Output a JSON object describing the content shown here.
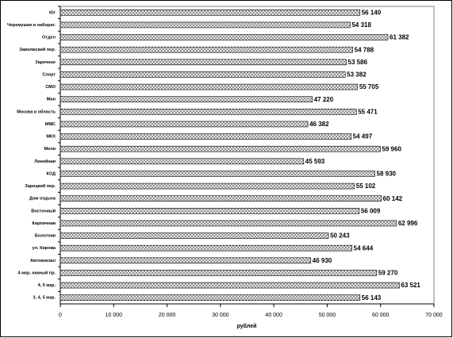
{
  "chart_data": {
    "type": "barh",
    "categories": [
      "Юг",
      "Черемушки и лаборат.",
      "Отдел",
      "Заволжский пер.",
      "Заречное",
      "Спорт",
      "СМО",
      "Мин",
      "Москва и область",
      "ММС",
      "МКХ",
      "Мели",
      "Линейная",
      "КОД",
      "Зарецкий пер.",
      "Дом отдыха",
      "Восточный",
      "Кирпичная",
      "Болотная",
      "ул. Кирова",
      "Автовокзал",
      "4 мкр, южный пр.",
      "4, 5 мкр.",
      "3, 4, 5 мкр."
    ],
    "values": [
      56140,
      54318,
      61382,
      54788,
      53586,
      53382,
      55705,
      47220,
      55471,
      46382,
      54497,
      59960,
      45593,
      58930,
      55102,
      60142,
      56009,
      62996,
      50243,
      54644,
      46930,
      59270,
      63521,
      56143
    ],
    "value_labels": [
      "56 140",
      "54 318",
      "61 382",
      "54 788",
      "53 586",
      "53 382",
      "55 705",
      "47 220",
      "55 471",
      "46 382",
      "54 497",
      "59 960",
      "45 593",
      "58 930",
      "55 102",
      "60 142",
      "56 009",
      "62 996",
      "50 243",
      "54 644",
      "46 930",
      "59 270",
      "63 521",
      "56 143"
    ],
    "color": "#808080",
    "xlabel": "рублей",
    "xlim": [
      0,
      70000
    ],
    "xticks": [
      0,
      {
        "value": 10000,
        "label": "10 000"
      },
      {
        "value": 20000,
        "label": "20 000"
      },
      {
        "value": 30000,
        "label": "30 000"
      },
      {
        "value": 40000,
        "label": "40 000"
      },
      {
        "value": 50000,
        "label": "50 000"
      },
      {
        "value": 60000,
        "label": "60 000"
      },
      {
        "value": 70000,
        "label": "70 000"
      }
    ]
  }
}
